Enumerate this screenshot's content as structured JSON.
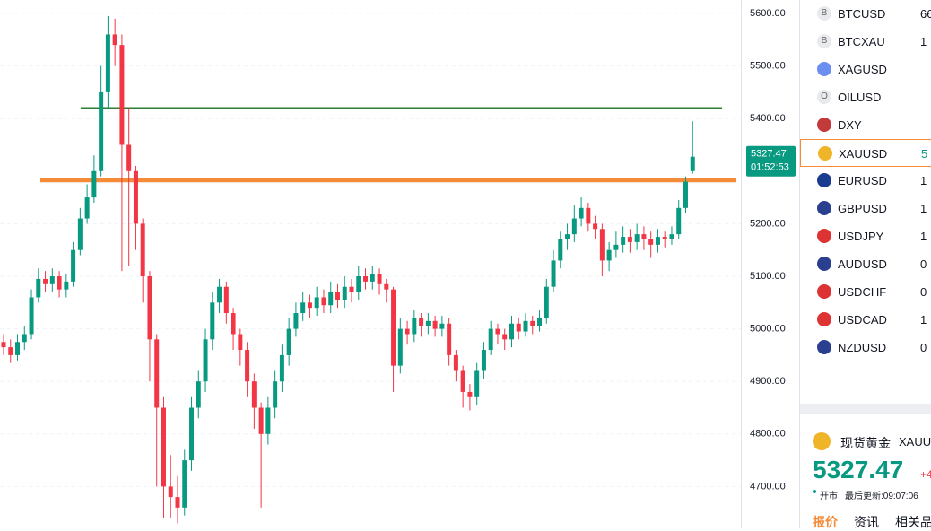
{
  "chart_data": {
    "type": "candlestick",
    "ylim": [
      4620.5,
      5625.6
    ],
    "yticks": [
      {
        "value": 5600,
        "label": "5600.00"
      },
      {
        "value": 5500,
        "label": "5500.00"
      },
      {
        "value": 5400,
        "label": "5400.00"
      },
      {
        "value": 5200,
        "label": "5200.00"
      },
      {
        "value": 5100,
        "label": "5100.00"
      },
      {
        "value": 5000,
        "label": "5000.00"
      },
      {
        "value": 4900,
        "label": "4900.00"
      },
      {
        "value": 4800,
        "label": "4800.00"
      },
      {
        "value": 4700,
        "label": "4700.00"
      }
    ],
    "grid": true,
    "up_color": "#089981",
    "down_color": "#f23645",
    "open": [
      4975,
      4965,
      4950,
      4975,
      4990,
      5060,
      5095,
      5085,
      5100,
      5075,
      5090,
      5150,
      5210,
      5250,
      5300,
      5450,
      5560,
      5540,
      5350,
      5300,
      5200,
      5100,
      4980,
      4850,
      4700,
      4680,
      4660,
      4750,
      4850,
      4900,
      4980,
      5050,
      5080,
      5030,
      4990,
      4960,
      4900,
      4850,
      4800,
      4850,
      4900,
      4950,
      5000,
      5030,
      5050,
      5040,
      5060,
      5045,
      5070,
      5055,
      5080,
      5070,
      5100,
      5090,
      5105,
      5085,
      5075,
      4930,
      5000,
      4990,
      5020,
      5005,
      5015,
      5000,
      5010,
      4950,
      4920,
      4880,
      4870,
      4920,
      4960,
      5000,
      4990,
      4980,
      5010,
      4995,
      5015,
      5005,
      5020,
      5080,
      5130,
      5170,
      5180,
      5210,
      5230,
      5200,
      5190,
      5130,
      5150,
      5160,
      5175,
      5165,
      5180,
      5170,
      5160,
      5175,
      5170,
      5180,
      5230,
      5300
    ],
    "high": [
      4990,
      4980,
      4990,
      5005,
      5075,
      5115,
      5110,
      5115,
      5110,
      5105,
      5165,
      5230,
      5275,
      5330,
      5500,
      5595,
      5590,
      5560,
      5420,
      5310,
      5210,
      5110,
      4990,
      4870,
      4760,
      4720,
      4770,
      4870,
      4920,
      5000,
      5070,
      5095,
      5090,
      5040,
      5000,
      4975,
      4915,
      4860,
      4870,
      4920,
      4970,
      5020,
      5050,
      5070,
      5065,
      5080,
      5075,
      5090,
      5085,
      5100,
      5095,
      5120,
      5115,
      5120,
      5115,
      5095,
      5080,
      5020,
      5015,
      5035,
      5030,
      5030,
      5025,
      5025,
      5020,
      4960,
      4930,
      4895,
      4935,
      4975,
      5015,
      5010,
      5000,
      5025,
      5020,
      5030,
      5025,
      5035,
      5095,
      5150,
      5185,
      5200,
      5235,
      5250,
      5240,
      5215,
      5200,
      5165,
      5185,
      5195,
      5190,
      5200,
      5195,
      5185,
      5190,
      5185,
      5195,
      5245,
      5290,
      5395
    ],
    "low": [
      4950,
      4935,
      4940,
      4960,
      4980,
      5050,
      5070,
      5070,
      5060,
      5060,
      5080,
      5140,
      5200,
      5240,
      5290,
      5420,
      5500,
      5110,
      5120,
      5150,
      5050,
      4900,
      4700,
      4640,
      4640,
      4630,
      4645,
      4730,
      4830,
      4880,
      4960,
      5030,
      5010,
      4960,
      4930,
      4870,
      4810,
      4660,
      4780,
      4830,
      4880,
      4930,
      4985,
      5015,
      5020,
      5025,
      5030,
      5030,
      5040,
      5040,
      5050,
      5055,
      5075,
      5075,
      5065,
      5050,
      4880,
      4915,
      4970,
      4975,
      4985,
      4990,
      4985,
      4985,
      4930,
      4900,
      4850,
      4845,
      4855,
      4905,
      4950,
      4970,
      4960,
      4965,
      4980,
      4985,
      4990,
      4995,
      5010,
      5070,
      5115,
      5150,
      5165,
      5195,
      5185,
      5170,
      5100,
      5110,
      5135,
      5145,
      5145,
      5150,
      5150,
      5135,
      5145,
      5155,
      5160,
      5170,
      5220,
      5295
    ],
    "close": [
      4965,
      4950,
      4975,
      4990,
      5060,
      5095,
      5085,
      5100,
      5075,
      5090,
      5150,
      5210,
      5250,
      5300,
      5450,
      5560,
      5540,
      5350,
      5300,
      5200,
      5100,
      4980,
      4850,
      4700,
      4680,
      4660,
      4750,
      4850,
      4900,
      4980,
      5050,
      5080,
      5030,
      4990,
      4960,
      4900,
      4850,
      4800,
      4850,
      4900,
      4950,
      5000,
      5030,
      5050,
      5040,
      5060,
      5045,
      5070,
      5055,
      5080,
      5070,
      5100,
      5090,
      5105,
      5085,
      5075,
      4930,
      5000,
      4990,
      5020,
      5005,
      5015,
      5000,
      5010,
      4950,
      4920,
      4880,
      4870,
      4920,
      4960,
      5000,
      4990,
      4980,
      5010,
      4995,
      5015,
      5005,
      5020,
      5080,
      5130,
      5170,
      5180,
      5210,
      5230,
      5200,
      5190,
      5130,
      5150,
      5160,
      5175,
      5165,
      5180,
      5170,
      5160,
      5175,
      5170,
      5180,
      5230,
      5280,
      5327.47
    ],
    "levels": [
      {
        "value": 5420,
        "color": "#2e7d32"
      },
      {
        "value": 5283,
        "color": "#f68b37"
      }
    ],
    "last_price": {
      "value": 5327.47,
      "label": "5327.47"
    },
    "countdown": "01:52:53"
  },
  "watchlist": [
    {
      "symbol": "BTCUSD",
      "value": "66"
    },
    {
      "symbol": "BTCXAU",
      "value": "1"
    },
    {
      "symbol": "XAGUSD"
    },
    {
      "symbol": "OILUSD"
    },
    {
      "symbol": "DXY"
    },
    {
      "symbol": "XAUUSD",
      "value": "5"
    },
    {
      "symbol": "EURUSD",
      "value": "1"
    },
    {
      "symbol": "GBPUSD",
      "value": "1"
    },
    {
      "symbol": "USDJPY",
      "value": "1"
    },
    {
      "symbol": "AUDUSD",
      "value": "0"
    },
    {
      "symbol": "USDCHF",
      "value": "0"
    },
    {
      "symbol": "USDCAD",
      "value": "1"
    },
    {
      "symbol": "NZDUSD",
      "value": "0"
    }
  ],
  "detail": {
    "name": "现货黄金",
    "symbol": "XAUU",
    "price": "5327.47",
    "change": "+4",
    "status": "开市",
    "updated": "最后更新:09:07:06",
    "tabs": [
      "报价",
      "资讯",
      "相关品"
    ]
  }
}
